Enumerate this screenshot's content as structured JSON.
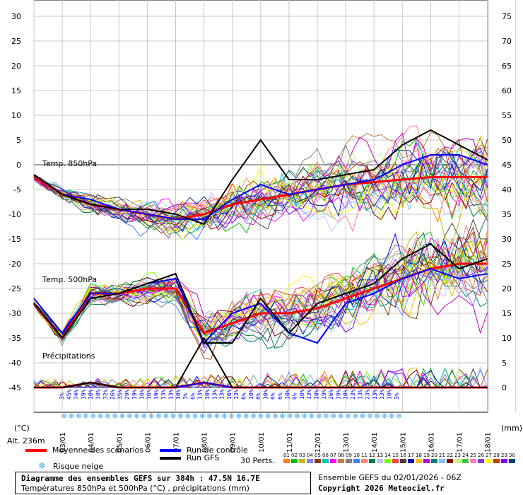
{
  "chart_data": {
    "type": "line",
    "title": "Diagramme des ensembles GEFS sur 384h : 47.5N 16.7E",
    "subtitle": "Températures 850hPa et 500hPa (°C) , précipitations (mm)",
    "ylabel_left": "(°C)",
    "ylabel_right": "(mm)",
    "left_ticks": [
      30,
      25,
      20,
      15,
      10,
      5,
      0,
      -5,
      -10,
      -15,
      -20,
      -25,
      -30,
      -35,
      -40,
      -45
    ],
    "right_ticks": [
      75,
      70,
      65,
      60,
      55,
      50,
      45,
      40,
      35,
      30,
      25,
      20,
      15,
      10,
      5,
      0
    ],
    "ylim": [
      -45,
      30
    ],
    "x_dates": [
      "03/01",
      "04/01",
      "05/01",
      "06/01",
      "07/01",
      "08/01",
      "09/01",
      "10/01",
      "11/01",
      "12/01",
      "13/01",
      "14/01",
      "15/01",
      "16/01",
      "17/01",
      "18/01"
    ],
    "sections": [
      "Temp. 850hPa",
      "Temp. 500hPa",
      "Précipitations"
    ],
    "series": [
      {
        "name": "Moyenne des scénarios",
        "color": "#ff0000",
        "t850": [
          -2.5,
          -6,
          -8,
          -9,
          -10,
          -11,
          -10,
          -8,
          -7,
          -6,
          -5,
          -4,
          -3.5,
          -3,
          -2.5,
          -2.5,
          -2.5
        ],
        "t500": [
          -28,
          -35,
          -26,
          -26,
          -25,
          -25,
          -34,
          -32,
          -30,
          -30,
          -29,
          -27,
          -25,
          -23,
          -21,
          -20,
          -20
        ],
        "precip": [
          0,
          0,
          1,
          0,
          0,
          0,
          1,
          0,
          0,
          0,
          0,
          0,
          0,
          0,
          0,
          0,
          0
        ]
      },
      {
        "name": "Run de contrôle",
        "color": "#0000ff",
        "t850": [
          -2,
          -6,
          -7,
          -9,
          -10,
          -11,
          -11,
          -7,
          -4,
          -6,
          -5,
          -4,
          -3,
          0,
          2,
          2,
          0
        ],
        "t500": [
          -27,
          -34,
          -26,
          -26,
          -24,
          -23,
          -36,
          -30,
          -28,
          -34,
          -36,
          -28,
          -26,
          -23,
          -21,
          -23,
          -22
        ],
        "precip": [
          0,
          0,
          1,
          0,
          0,
          0,
          1,
          0,
          0,
          0,
          0,
          0,
          0,
          0,
          0,
          0,
          0
        ]
      },
      {
        "name": "Run GFS",
        "color": "#000000",
        "t850": [
          -2,
          -6,
          -8,
          -9,
          -9,
          -10,
          -12,
          -3,
          5,
          -3,
          -3,
          -2,
          -1,
          4,
          7,
          4,
          1
        ],
        "t500": [
          -28,
          -35,
          -27,
          -26,
          -24,
          -22,
          -36,
          -36,
          -27,
          -34,
          -28,
          -26,
          -24,
          -19,
          -16,
          -21,
          -19
        ],
        "precip": [
          0,
          0,
          1,
          0,
          0,
          0,
          10,
          0,
          0,
          0,
          0,
          0,
          0,
          0,
          0,
          0,
          0
        ]
      }
    ],
    "snow_risk_pct": [
      "3%",
      "45%",
      "74%",
      "19%",
      "10%",
      "10%",
      "32%",
      "26%",
      "35%",
      "29%",
      "19%",
      "16%",
      "16%",
      "19%",
      "13%",
      "13%",
      "10%",
      "3%",
      "6%",
      "13%",
      "10%",
      "13%",
      "13%",
      "16%",
      "13%",
      "6%",
      "10%",
      "6%",
      "10%",
      "6%",
      "6%",
      "10%",
      "6%",
      "10%",
      "13%",
      "10%",
      "19%",
      "26%",
      "19%",
      "10%",
      "23%",
      "13%",
      "23%",
      "13%",
      "13%",
      "10%",
      "3%"
    ]
  },
  "meta": {
    "alt": "Alt. 236m",
    "legend_mean": "Moyenne des scénarios",
    "legend_control": "Run de contrôle",
    "legend_gfs": "Run GFS",
    "legend_snow": "Risque neige",
    "perts_label": "30 Perts.",
    "pert_numbers": [
      "01",
      "02",
      "03",
      "04",
      "05",
      "06",
      "07",
      "08",
      "09",
      "10",
      "11",
      "12",
      "13",
      "14",
      "15",
      "16",
      "17",
      "18",
      "19",
      "20",
      "21",
      "22",
      "23",
      "24",
      "25",
      "26",
      "27",
      "28",
      "29",
      "30"
    ],
    "pert_colors": [
      "#ff8000",
      "#00c000",
      "#c0c000",
      "#8080ff",
      "#804000",
      "#00c0c0",
      "#ff00ff",
      "#c08040",
      "#808080",
      "#4080ff",
      "#ff8080",
      "#008040",
      "#c0c0ff",
      "#80ff00",
      "#ff4040",
      "#404040",
      "#0000c0",
      "#ffc000",
      "#c000c0",
      "#008080",
      "#80c0ff",
      "#800000",
      "#c0ff80",
      "#40c040",
      "#ff80c0",
      "#8040c0",
      "#ffff00",
      "#c04000",
      "#8000ff",
      "#004080"
    ],
    "run_info": "Ensemble GEFS du 02/01/2026 - 06Z",
    "copyright": "Copyright 2026 Meteociel.fr"
  }
}
